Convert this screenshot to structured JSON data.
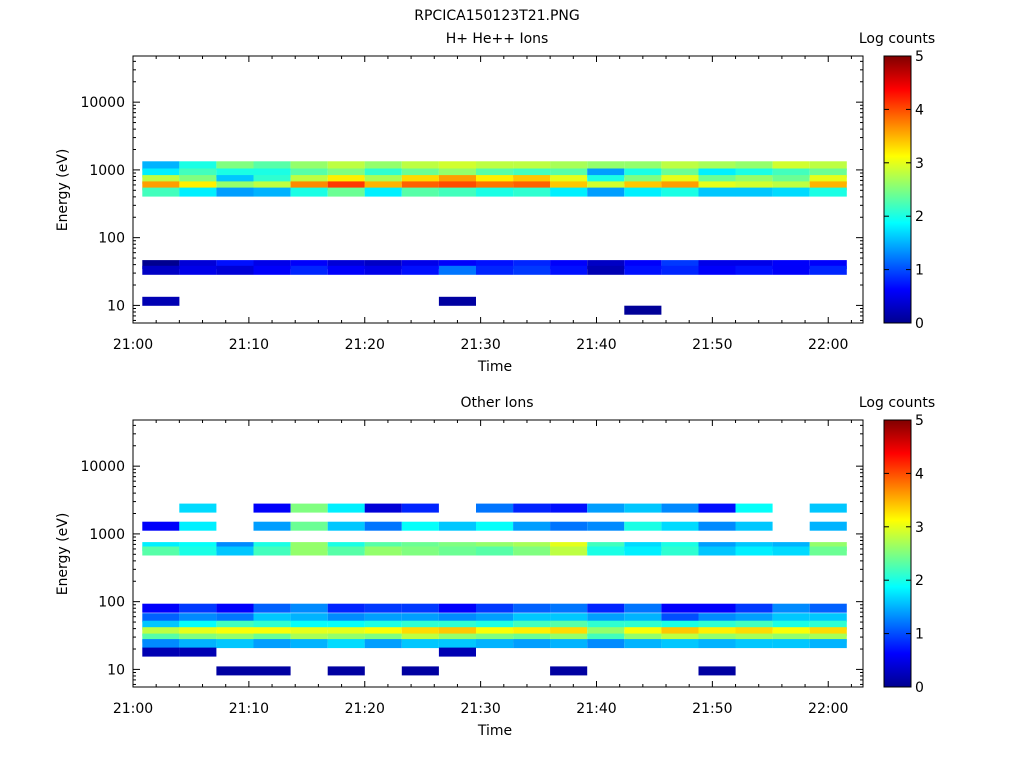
{
  "figure": {
    "filename": "RPCICA150123T21.PNG"
  },
  "colorscale": {
    "name": "jet",
    "stops": [
      "#00008f",
      "#0000ff",
      "#00ffff",
      "#ffff00",
      "#ff0000",
      "#800000"
    ]
  },
  "chart_data": [
    {
      "type": "heatmap",
      "title": "H+ He++ Ions",
      "xlabel": "Time",
      "ylabel": "Energy (eV)",
      "colorbar_label": "Log counts",
      "x_ticks": [
        "21:00",
        "21:10",
        "21:20",
        "21:30",
        "21:40",
        "21:50",
        "22:00"
      ],
      "y_ticks": [
        "10",
        "100",
        "1000",
        "10000"
      ],
      "colorbar_ticks": [
        "0",
        "1",
        "2",
        "3",
        "4",
        "5"
      ],
      "x_range_minutes": [
        0,
        63
      ],
      "y_scale": "log",
      "y_range_eV": [
        5.5,
        48000
      ],
      "z_range": [
        0,
        5
      ],
      "time_bins_start_minutes": [
        0.8,
        4.0,
        7.2,
        10.4,
        13.6,
        16.8,
        20.0,
        23.2,
        26.4,
        29.6,
        32.8,
        36.0,
        39.2,
        42.4,
        45.6,
        48.8,
        52.0,
        55.2,
        58.4
      ],
      "time_bin_width_minutes": 3.2,
      "bands": [
        {
          "energy_eV": 1150,
          "log_counts": [
            1.5,
            2.0,
            2.5,
            2.3,
            2.6,
            2.8,
            2.6,
            2.8,
            2.9,
            2.8,
            2.8,
            2.7,
            2.6,
            2.6,
            2.8,
            2.7,
            2.6,
            2.9,
            2.8
          ]
        },
        {
          "energy_eV": 900,
          "log_counts": [
            1.8,
            2.2,
            2.0,
            2.0,
            2.3,
            2.5,
            2.1,
            2.4,
            2.6,
            2.3,
            2.2,
            2.3,
            1.4,
            2.0,
            2.4,
            1.8,
            2.0,
            2.2,
            2.4
          ]
        },
        {
          "energy_eV": 720,
          "log_counts": [
            2.8,
            2.5,
            1.6,
            2.1,
            2.8,
            3.2,
            2.7,
            3.3,
            3.6,
            3.2,
            3.4,
            3.0,
            2.0,
            2.5,
            3.0,
            2.4,
            2.6,
            2.4,
            3.0
          ]
        },
        {
          "energy_eV": 580,
          "log_counts": [
            3.6,
            3.2,
            2.6,
            2.8,
            3.7,
            4.1,
            3.5,
            3.9,
            4.0,
            3.8,
            3.9,
            3.4,
            2.9,
            3.4,
            3.6,
            3.0,
            2.9,
            2.8,
            3.5
          ]
        },
        {
          "energy_eV": 470,
          "log_counts": [
            2.2,
            1.8,
            1.4,
            1.5,
            2.0,
            2.4,
            1.8,
            2.3,
            2.2,
            2.0,
            2.1,
            1.8,
            1.4,
            1.8,
            2.0,
            1.6,
            1.6,
            1.7,
            2.0
          ]
        },
        {
          "energy_eV": 40,
          "log_counts": [
            0,
            0.4,
            0.7,
            0.5,
            0.6,
            0.4,
            0.3,
            0.5,
            0.6,
            0.7,
            0.8,
            0.6,
            0.3,
            0.6,
            0.9,
            0.5,
            0.5,
            0.6,
            0.6
          ]
        },
        {
          "energy_eV": 33,
          "log_counts": [
            0.3,
            0.5,
            0.4,
            0.6,
            0.8,
            0.6,
            0.5,
            0.7,
            1.2,
            0.8,
            0.9,
            0.7,
            0.2,
            0.7,
            0.8,
            0.6,
            0.7,
            0.6,
            0.8
          ]
        },
        {
          "energy_eV": 11.5,
          "log_counts": [
            0.2,
            null,
            null,
            null,
            null,
            null,
            null,
            null,
            0.1,
            null,
            null,
            null,
            null,
            null,
            null,
            null,
            null,
            null,
            null
          ]
        },
        {
          "energy_eV": 8.5,
          "log_counts": [
            null,
            null,
            null,
            null,
            null,
            null,
            null,
            null,
            null,
            null,
            null,
            null,
            null,
            0.05,
            null,
            null,
            null,
            null,
            null
          ]
        }
      ],
      "sparse_note_value": 0.1
    },
    {
      "type": "heatmap",
      "title": "Other Ions",
      "xlabel": "Time",
      "ylabel": "Energy (eV)",
      "colorbar_label": "Log counts",
      "x_ticks": [
        "21:00",
        "21:10",
        "21:20",
        "21:30",
        "21:40",
        "21:50",
        "22:00"
      ],
      "y_ticks": [
        "10",
        "100",
        "1000",
        "10000"
      ],
      "colorbar_ticks": [
        "0",
        "1",
        "2",
        "3",
        "4",
        "5"
      ],
      "x_range_minutes": [
        0,
        63
      ],
      "y_scale": "log",
      "y_range_eV": [
        5.5,
        48000
      ],
      "z_range": [
        0,
        5
      ],
      "time_bins_start_minutes": [
        0.8,
        4.0,
        7.2,
        10.4,
        13.6,
        16.8,
        20.0,
        23.2,
        26.4,
        29.6,
        32.8,
        36.0,
        39.2,
        42.4,
        45.6,
        48.8,
        52.0,
        55.2,
        58.4
      ],
      "time_bin_width_minutes": 3.2,
      "bands": [
        {
          "energy_eV": 2400,
          "log_counts": [
            null,
            1.7,
            null,
            0.6,
            2.5,
            1.8,
            0.4,
            0.8,
            null,
            1.2,
            0.8,
            0.7,
            1.4,
            1.6,
            1.3,
            0.7,
            1.9,
            null,
            1.6
          ]
        },
        {
          "energy_eV": 1300,
          "log_counts": [
            0.6,
            1.8,
            null,
            1.4,
            2.4,
            1.6,
            1.2,
            1.9,
            1.6,
            1.9,
            1.4,
            1.2,
            1.3,
            2.0,
            1.7,
            1.3,
            1.6,
            null,
            1.5
          ]
        },
        {
          "energy_eV": 650,
          "log_counts": [
            1.8,
            1.9,
            1.3,
            2.0,
            2.6,
            2.0,
            2.3,
            2.4,
            2.5,
            2.6,
            2.7,
            3.0,
            2.2,
            1.7,
            2.0,
            1.4,
            1.6,
            1.5,
            2.6
          ]
        },
        {
          "energy_eV": 560,
          "log_counts": [
            2.3,
            2.0,
            1.6,
            2.2,
            2.6,
            2.3,
            2.6,
            2.5,
            2.4,
            2.3,
            2.5,
            2.8,
            2.0,
            1.8,
            2.1,
            1.6,
            1.8,
            1.7,
            2.4
          ]
        },
        {
          "energy_eV": 80,
          "log_counts": [
            0.6,
            0.9,
            0.6,
            1.1,
            1.3,
            0.8,
            0.9,
            0.9,
            0.6,
            0.9,
            1.1,
            1.2,
            0.8,
            1.2,
            0.6,
            0.6,
            0.9,
            1.3,
            1.1
          ]
        },
        {
          "energy_eV": 58,
          "log_counts": [
            1.1,
            1.3,
            1.2,
            1.6,
            1.5,
            1.3,
            1.4,
            1.4,
            1.3,
            1.4,
            1.6,
            1.6,
            1.4,
            1.5,
            1.0,
            1.3,
            1.4,
            1.6,
            1.6
          ]
        },
        {
          "energy_eV": 45,
          "log_counts": [
            1.6,
            1.9,
            2.2,
            2.1,
            1.9,
            1.9,
            2.0,
            2.1,
            2.1,
            2.0,
            2.2,
            2.3,
            2.1,
            2.1,
            2.0,
            2.1,
            2.2,
            2.0,
            2.1
          ]
        },
        {
          "energy_eV": 36,
          "log_counts": [
            2.8,
            3.0,
            3.1,
            3.1,
            3.0,
            3.0,
            3.1,
            3.3,
            3.4,
            3.1,
            3.2,
            3.3,
            2.6,
            3.1,
            3.4,
            3.2,
            3.3,
            3.1,
            3.3
          ]
        },
        {
          "energy_eV": 29,
          "log_counts": [
            2.3,
            2.5,
            2.6,
            2.4,
            2.7,
            2.6,
            2.5,
            2.8,
            2.6,
            2.5,
            2.4,
            2.6,
            2.2,
            2.6,
            2.8,
            2.6,
            2.7,
            2.6,
            2.7
          ]
        },
        {
          "energy_eV": 24,
          "log_counts": [
            1.3,
            1.5,
            1.6,
            1.4,
            1.5,
            1.7,
            1.4,
            1.6,
            1.6,
            1.5,
            1.4,
            1.5,
            1.3,
            1.5,
            1.6,
            1.5,
            1.6,
            1.6,
            1.5
          ]
        },
        {
          "energy_eV": 18,
          "log_counts": [
            0.2,
            0.2,
            null,
            null,
            null,
            null,
            null,
            null,
            0.2,
            null,
            null,
            null,
            null,
            null,
            null,
            null,
            null,
            null,
            null
          ]
        },
        {
          "energy_eV": 9.5,
          "log_counts": [
            null,
            null,
            0.1,
            0.1,
            null,
            0.1,
            null,
            0.1,
            null,
            null,
            null,
            0.1,
            null,
            null,
            null,
            0.1,
            null,
            null,
            null
          ]
        }
      ],
      "sparse_note_value": 0.1
    }
  ]
}
